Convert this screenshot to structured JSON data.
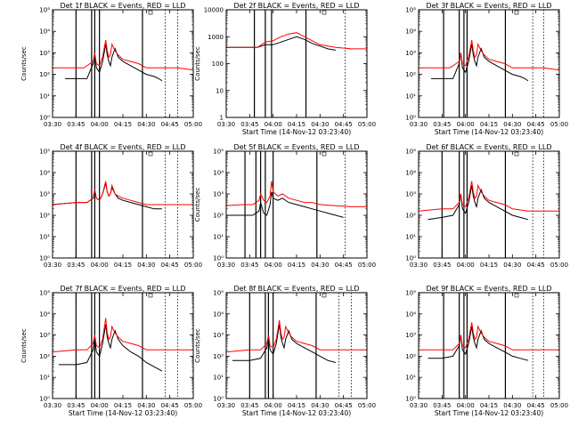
{
  "x_ticks": [
    "03:30",
    "03:45",
    "04:00",
    "04:15",
    "04:30",
    "04:45",
    "05:00"
  ],
  "xlabel": "Start Time (14-Nov-12 03:23:40)",
  "ylabel_a": "Counts/sec",
  "ylabel_b": "Counts/sec",
  "colors": {
    "events": "#000000",
    "lld": "#ff0000"
  },
  "chart_data": [
    {
      "type": "line",
      "title": "Det 1f BLACK = Events, RED = LLD",
      "ylabel": "Counts/sec",
      "xlim": [
        0,
        90
      ],
      "ylog": true,
      "ylim_exp": [
        0,
        5
      ],
      "y_ticks": [
        "10⁰",
        "10¹",
        "10²",
        "10³",
        "10⁴",
        "10⁵"
      ],
      "show_xlabel": false,
      "vlines_solid": [
        15,
        25,
        27,
        30,
        57.5
      ],
      "vlines_dotted": [
        72,
        80
      ],
      "series": [
        {
          "name": "Events",
          "x": [
            8,
            15,
            22,
            26,
            27,
            28,
            30,
            32,
            34,
            35,
            36,
            37,
            38,
            40,
            42,
            45,
            50,
            55,
            60,
            65,
            68,
            70
          ],
          "y": [
            1.8,
            1.8,
            1.8,
            2.5,
            3.0,
            2.3,
            2.1,
            2.6,
            3.4,
            2.9,
            2.6,
            2.4,
            2.8,
            3.2,
            2.8,
            2.6,
            2.4,
            2.2,
            2.0,
            1.9,
            1.8,
            1.7
          ]
        },
        {
          "name": "LLD",
          "x": [
            0,
            15,
            20,
            26,
            27,
            28,
            30,
            32,
            34,
            35,
            36,
            37,
            38,
            40,
            42,
            45,
            50,
            55,
            60,
            70,
            80,
            90
          ],
          "y": [
            2.3,
            2.3,
            2.3,
            2.6,
            3.0,
            2.5,
            2.4,
            2.8,
            3.6,
            3.1,
            2.8,
            2.9,
            3.4,
            3.1,
            2.9,
            2.7,
            2.6,
            2.5,
            2.3,
            2.3,
            2.3,
            2.2
          ]
        }
      ]
    },
    {
      "type": "line",
      "title": "Det 2f BLACK = Events, RED = LLD",
      "ylabel": "Counts/sec",
      "xlim": [
        0,
        90
      ],
      "ylog": true,
      "ylim_exp": [
        0,
        4
      ],
      "y_ticks": [
        "1",
        "10",
        "100",
        "1000",
        "10000"
      ],
      "show_xlabel": true,
      "vlines_solid": [
        18,
        25,
        29,
        51
      ],
      "vlines_dotted": [
        76
      ],
      "series": [
        {
          "name": "Events",
          "x": [
            0,
            15,
            20,
            25,
            30,
            35,
            40,
            45,
            50,
            55,
            60,
            65,
            70
          ],
          "y": [
            2.6,
            2.6,
            2.6,
            2.7,
            2.7,
            2.8,
            2.9,
            3.0,
            2.9,
            2.75,
            2.65,
            2.55,
            2.5
          ]
        },
        {
          "name": "LLD",
          "x": [
            0,
            15,
            20,
            25,
            30,
            35,
            40,
            45,
            50,
            55,
            60,
            70,
            80,
            90
          ],
          "y": [
            2.6,
            2.6,
            2.6,
            2.8,
            2.85,
            3.0,
            3.1,
            3.15,
            3.0,
            2.85,
            2.7,
            2.6,
            2.55,
            2.55
          ]
        }
      ]
    },
    {
      "type": "line",
      "title": "Det 3f BLACK = Events, RED = LLD",
      "ylabel": "",
      "xlim": [
        0,
        90
      ],
      "ylog": true,
      "ylim_exp": [
        0,
        5
      ],
      "y_ticks": [
        "10⁰",
        "10¹",
        "10²",
        "10³",
        "10⁴",
        "10⁵"
      ],
      "show_xlabel": true,
      "vlines_solid": [
        16,
        26,
        29,
        31,
        55.5
      ],
      "vlines_dotted": [
        73,
        80
      ],
      "series": [
        {
          "name": "Events",
          "x": [
            8,
            15,
            22,
            26,
            27,
            28,
            30,
            32,
            34,
            35,
            36,
            37,
            38,
            40,
            42,
            45,
            50,
            55,
            60,
            65,
            68,
            70
          ],
          "y": [
            1.8,
            1.8,
            1.8,
            2.5,
            3.0,
            2.3,
            2.1,
            2.6,
            3.4,
            2.9,
            2.6,
            2.4,
            2.8,
            3.2,
            2.8,
            2.6,
            2.4,
            2.2,
            2.0,
            1.9,
            1.8,
            1.7
          ]
        },
        {
          "name": "LLD",
          "x": [
            0,
            15,
            20,
            26,
            27,
            28,
            30,
            32,
            34,
            35,
            36,
            37,
            38,
            40,
            42,
            45,
            50,
            55,
            60,
            70,
            80,
            90
          ],
          "y": [
            2.3,
            2.3,
            2.3,
            2.6,
            3.0,
            2.5,
            2.4,
            2.8,
            3.6,
            3.1,
            2.8,
            2.9,
            3.4,
            3.1,
            2.9,
            2.7,
            2.6,
            2.5,
            2.3,
            2.3,
            2.3,
            2.2
          ]
        }
      ]
    },
    {
      "type": "line",
      "title": "Det 4f BLACK = Events, RED = LLD",
      "ylabel": "",
      "xlim": [
        0,
        90
      ],
      "ylog": true,
      "ylim_exp": [
        0,
        5
      ],
      "y_ticks": [
        "10⁰",
        "10¹",
        "10²",
        "10³",
        "10⁴",
        "10⁵"
      ],
      "show_xlabel": false,
      "vlines_solid": [
        15,
        25,
        27,
        30,
        57.5
      ],
      "vlines_dotted": [
        72,
        80
      ],
      "series": [
        {
          "name": "Events",
          "x": [
            0,
            15,
            22,
            26,
            27,
            28,
            30,
            32,
            34,
            35,
            36,
            37,
            38,
            40,
            42,
            45,
            50,
            55,
            60,
            65,
            70
          ],
          "y": [
            2.5,
            2.6,
            2.6,
            2.8,
            3.2,
            2.8,
            2.7,
            3.0,
            3.5,
            3.1,
            2.9,
            3.0,
            3.3,
            3.0,
            2.8,
            2.7,
            2.6,
            2.5,
            2.4,
            2.3,
            2.3
          ]
        },
        {
          "name": "LLD",
          "x": [
            0,
            15,
            22,
            26,
            27,
            28,
            30,
            32,
            34,
            35,
            36,
            37,
            38,
            40,
            42,
            45,
            50,
            55,
            60,
            70,
            80,
            90
          ],
          "y": [
            2.5,
            2.6,
            2.6,
            2.8,
            3.2,
            2.8,
            2.7,
            3.0,
            3.6,
            3.1,
            2.9,
            3.0,
            3.4,
            3.0,
            2.9,
            2.8,
            2.7,
            2.6,
            2.5,
            2.5,
            2.5,
            2.5
          ]
        }
      ]
    },
    {
      "type": "line",
      "title": "Det 5f BLACK = Events, RED = LLD",
      "ylabel": "Counts/sec",
      "xlim": [
        0,
        90
      ],
      "ylog": true,
      "ylim_exp": [
        0,
        5
      ],
      "y_ticks": [
        "10⁰",
        "10¹",
        "10²",
        "10³",
        "10⁴",
        "10⁵"
      ],
      "show_xlabel": false,
      "vlines_solid": [
        12,
        19,
        22,
        25,
        30,
        58
      ],
      "vlines_dotted": [
        76
      ],
      "series": [
        {
          "name": "Events",
          "x": [
            0,
            10,
            17,
            21,
            22,
            24,
            26,
            28,
            29,
            30,
            33,
            36,
            40,
            45,
            50,
            55,
            60,
            65,
            70,
            75
          ],
          "y": [
            2.0,
            2.0,
            2.0,
            2.2,
            2.6,
            2.1,
            2.0,
            2.5,
            3.1,
            2.8,
            2.7,
            2.8,
            2.6,
            2.5,
            2.4,
            2.3,
            2.2,
            2.1,
            2.0,
            1.9
          ]
        },
        {
          "name": "LLD",
          "x": [
            0,
            10,
            17,
            21,
            22,
            24,
            26,
            28,
            29,
            30,
            33,
            36,
            40,
            45,
            50,
            55,
            60,
            70,
            80,
            90
          ],
          "y": [
            2.45,
            2.5,
            2.5,
            2.7,
            3.0,
            2.7,
            2.6,
            2.9,
            3.6,
            3.1,
            2.9,
            3.0,
            2.8,
            2.7,
            2.6,
            2.6,
            2.5,
            2.45,
            2.4,
            2.4
          ]
        }
      ]
    },
    {
      "type": "line",
      "title": "Det 6f BLACK = Events, RED = LLD",
      "ylabel": "",
      "xlim": [
        0,
        90
      ],
      "ylog": true,
      "ylim_exp": [
        0,
        5
      ],
      "y_ticks": [
        "10⁰",
        "10¹",
        "10²",
        "10³",
        "10⁴",
        "10⁵"
      ],
      "show_xlabel": false,
      "vlines_solid": [
        15,
        26,
        29,
        31,
        55.5
      ],
      "vlines_dotted": [
        73,
        80
      ],
      "series": [
        {
          "name": "Events",
          "x": [
            6,
            15,
            22,
            26,
            27,
            28,
            30,
            32,
            34,
            35,
            36,
            37,
            38,
            40,
            42,
            45,
            50,
            55,
            60,
            65,
            70
          ],
          "y": [
            1.8,
            1.9,
            2.0,
            2.5,
            3.0,
            2.3,
            2.1,
            2.6,
            3.4,
            2.9,
            2.6,
            2.4,
            2.8,
            3.2,
            2.8,
            2.6,
            2.4,
            2.2,
            2.0,
            1.9,
            1.8
          ]
        },
        {
          "name": "LLD",
          "x": [
            0,
            15,
            22,
            26,
            27,
            28,
            30,
            32,
            34,
            35,
            36,
            37,
            38,
            40,
            42,
            45,
            50,
            55,
            60,
            70,
            80,
            90
          ],
          "y": [
            2.2,
            2.3,
            2.3,
            2.6,
            3.0,
            2.5,
            2.4,
            2.8,
            3.6,
            3.1,
            2.8,
            2.9,
            3.4,
            3.1,
            2.9,
            2.7,
            2.6,
            2.5,
            2.3,
            2.2,
            2.2,
            2.2
          ]
        }
      ]
    },
    {
      "type": "line",
      "title": "Det 7f BLACK = Events, RED = LLD",
      "ylabel": "Counts/sec",
      "xlim": [
        0,
        90
      ],
      "ylog": true,
      "ylim_exp": [
        0,
        5
      ],
      "y_ticks": [
        "10⁰",
        "10¹",
        "10²",
        "10³",
        "10⁴",
        "10⁵"
      ],
      "show_xlabel": true,
      "vlines_solid": [
        15,
        25,
        27,
        30,
        57.5
      ],
      "vlines_dotted": [
        72,
        80
      ],
      "series": [
        {
          "name": "Events",
          "x": [
            4,
            15,
            22,
            26,
            27,
            28,
            30,
            32,
            34,
            35,
            36,
            37,
            38,
            40,
            42,
            45,
            50,
            55,
            60,
            65,
            70
          ],
          "y": [
            1.6,
            1.6,
            1.7,
            2.3,
            2.9,
            2.2,
            2.0,
            2.6,
            3.5,
            2.9,
            2.6,
            2.4,
            2.8,
            3.2,
            2.8,
            2.5,
            2.2,
            2.0,
            1.7,
            1.5,
            1.3
          ]
        },
        {
          "name": "LLD",
          "x": [
            0,
            15,
            22,
            26,
            27,
            28,
            30,
            32,
            34,
            35,
            36,
            37,
            38,
            40,
            42,
            45,
            50,
            55,
            60,
            70,
            80,
            90
          ],
          "y": [
            2.2,
            2.3,
            2.3,
            2.6,
            3.0,
            2.5,
            2.4,
            2.8,
            3.8,
            3.1,
            2.8,
            2.9,
            3.4,
            3.1,
            2.9,
            2.7,
            2.6,
            2.5,
            2.3,
            2.3,
            2.3,
            2.3
          ]
        }
      ]
    },
    {
      "type": "line",
      "title": "Det 8f BLACK = Events, RED = LLD",
      "ylabel": "Counts/sec",
      "xlim": [
        0,
        90
      ],
      "ylog": true,
      "ylim_exp": [
        0,
        5
      ],
      "y_ticks": [
        "10⁰",
        "10¹",
        "10²",
        "10³",
        "10⁴",
        "10⁵"
      ],
      "show_xlabel": true,
      "vlines_solid": [
        15,
        25,
        27,
        30,
        57.5
      ],
      "vlines_dotted": [
        72,
        80
      ],
      "series": [
        {
          "name": "Events",
          "x": [
            4,
            15,
            22,
            26,
            27,
            28,
            30,
            32,
            34,
            35,
            36,
            37,
            38,
            40,
            42,
            45,
            50,
            55,
            60,
            65,
            70
          ],
          "y": [
            1.8,
            1.8,
            1.9,
            2.4,
            3.0,
            2.3,
            2.1,
            2.6,
            3.5,
            2.9,
            2.6,
            2.4,
            2.8,
            3.2,
            2.8,
            2.6,
            2.4,
            2.2,
            2.0,
            1.8,
            1.7
          ]
        },
        {
          "name": "LLD",
          "x": [
            0,
            15,
            22,
            26,
            27,
            28,
            30,
            32,
            34,
            35,
            36,
            37,
            38,
            40,
            42,
            45,
            50,
            55,
            60,
            70,
            80,
            90
          ],
          "y": [
            2.2,
            2.3,
            2.3,
            2.6,
            3.0,
            2.5,
            2.4,
            2.8,
            3.7,
            3.1,
            2.8,
            2.9,
            3.4,
            3.1,
            2.9,
            2.7,
            2.6,
            2.5,
            2.3,
            2.3,
            2.3,
            2.3
          ]
        }
      ]
    },
    {
      "type": "line",
      "title": "Det 9f BLACK = Events, RED = LLD",
      "ylabel": "",
      "xlim": [
        0,
        90
      ],
      "ylog": true,
      "ylim_exp": [
        0,
        5
      ],
      "y_ticks": [
        "10⁰",
        "10¹",
        "10²",
        "10³",
        "10⁴",
        "10⁵"
      ],
      "show_xlabel": true,
      "vlines_solid": [
        16,
        26,
        29,
        31,
        55.5
      ],
      "vlines_dotted": [
        73,
        80
      ],
      "series": [
        {
          "name": "Events",
          "x": [
            6,
            15,
            22,
            26,
            27,
            28,
            30,
            32,
            34,
            35,
            36,
            37,
            38,
            40,
            42,
            45,
            50,
            55,
            60,
            65,
            70
          ],
          "y": [
            1.9,
            1.9,
            2.0,
            2.5,
            3.0,
            2.3,
            2.1,
            2.6,
            3.4,
            2.9,
            2.6,
            2.4,
            2.8,
            3.2,
            2.8,
            2.6,
            2.4,
            2.2,
            2.0,
            1.9,
            1.8
          ]
        },
        {
          "name": "LLD",
          "x": [
            0,
            15,
            22,
            26,
            27,
            28,
            30,
            32,
            34,
            35,
            36,
            37,
            38,
            40,
            42,
            45,
            50,
            55,
            60,
            70,
            80,
            90
          ],
          "y": [
            2.3,
            2.3,
            2.3,
            2.6,
            3.0,
            2.5,
            2.4,
            2.8,
            3.6,
            3.1,
            2.8,
            2.9,
            3.4,
            3.1,
            2.9,
            2.7,
            2.6,
            2.5,
            2.3,
            2.3,
            2.3,
            2.3
          ]
        }
      ]
    }
  ]
}
